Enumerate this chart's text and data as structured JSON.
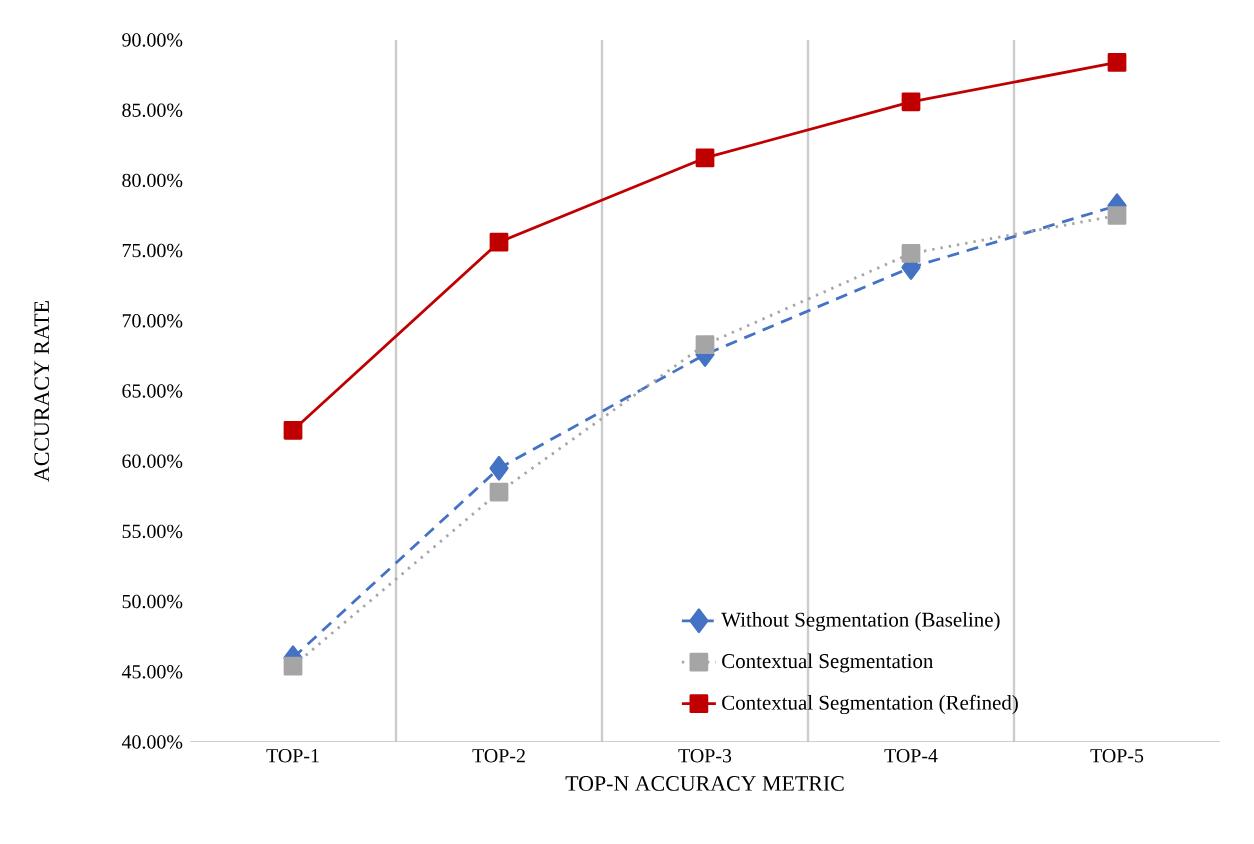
{
  "chart_data": {
    "type": "line",
    "xlabel": "TOP-N ACCURACY METRIC",
    "ylabel": "ACCURACY RATE",
    "categories": [
      "TOP-1",
      "TOP-2",
      "TOP-3",
      "TOP-4",
      "TOP-5"
    ],
    "series": [
      {
        "name": "Without Segmentation (Baseline)",
        "color": "#4472c4",
        "marker": "diamond",
        "line_style": "dashed",
        "values": [
          46.0,
          59.5,
          67.6,
          73.8,
          78.2
        ]
      },
      {
        "name": "Contextual Segmentation",
        "color": "#a5a5a5",
        "marker": "square",
        "line_style": "dotted",
        "values": [
          45.4,
          57.8,
          68.3,
          74.8,
          77.5
        ]
      },
      {
        "name": "Contextual Segmentation (Refined)",
        "color": "#c00000",
        "marker": "square",
        "line_style": "solid",
        "values": [
          62.2,
          75.6,
          81.6,
          85.6,
          88.4
        ]
      }
    ],
    "ylim": [
      40,
      90
    ],
    "yticks": [
      {
        "value": 40,
        "label": "40.00%"
      },
      {
        "value": 45,
        "label": "45.00%"
      },
      {
        "value": 50,
        "label": "50.00%"
      },
      {
        "value": 55,
        "label": "55.00%"
      },
      {
        "value": 60,
        "label": "60.00%"
      },
      {
        "value": 65,
        "label": "65.00%"
      },
      {
        "value": 70,
        "label": "70.00%"
      },
      {
        "value": 75,
        "label": "75.00%"
      },
      {
        "value": 80,
        "label": "80.00%"
      },
      {
        "value": 85,
        "label": "85.00%"
      },
      {
        "value": 90,
        "label": "90.00%"
      }
    ],
    "grid": "x",
    "legend": "bottom right"
  }
}
